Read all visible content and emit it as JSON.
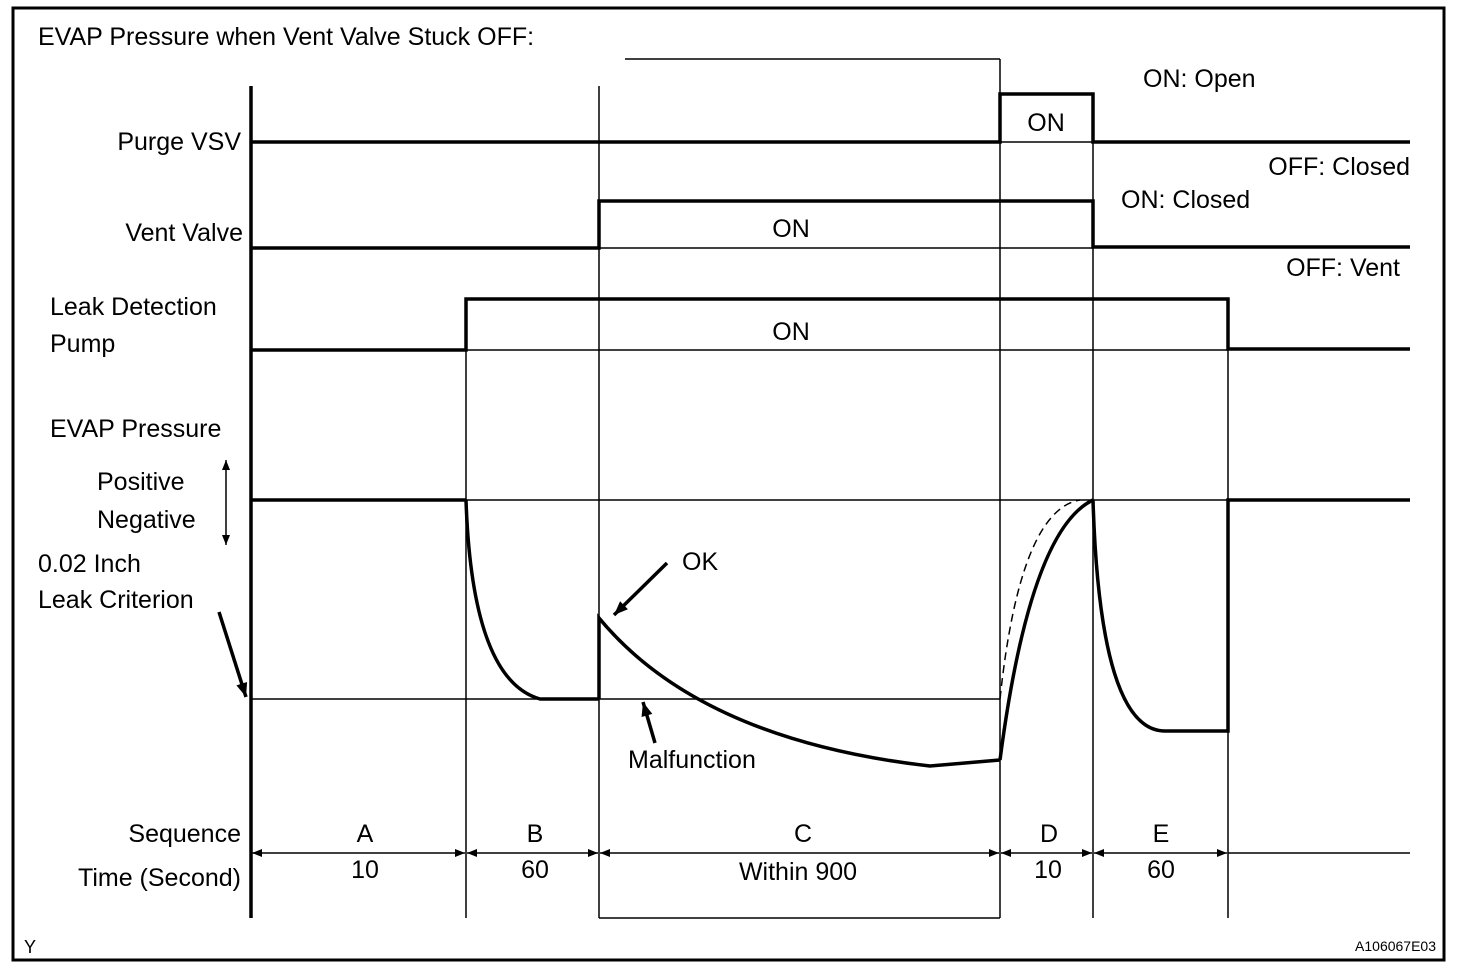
{
  "title": "EVAP Pressure when Vent Valve Stuck OFF:",
  "signals": [
    {
      "label_lines": [
        "Purge VSV"
      ],
      "on_label": "ON",
      "on_state": "ON: Open",
      "off_state": "OFF: Closed"
    },
    {
      "label_lines": [
        "Vent Valve"
      ],
      "on_label": "ON",
      "on_state": "ON: Closed",
      "off_state": "OFF: Vent"
    },
    {
      "label_lines": [
        "Leak Detection",
        "Pump"
      ],
      "on_label": "ON"
    }
  ],
  "pressure": {
    "label": "EVAP Pressure",
    "positive": "Positive",
    "negative": "Negative",
    "criterion_lines": [
      "0.02 Inch",
      "Leak Criterion"
    ],
    "ok": "OK",
    "malfunction": "Malfunction"
  },
  "sequence": {
    "label": "Sequence",
    "time_label": "Time (Second)",
    "phases": [
      {
        "name": "A",
        "time": "10"
      },
      {
        "name": "B",
        "time": "60"
      },
      {
        "name": "C",
        "time": "Within 900"
      },
      {
        "name": "D",
        "time": "10"
      },
      {
        "name": "E",
        "time": "60"
      }
    ]
  },
  "figure_mark": "Y",
  "figure_code": "A106067E03"
}
